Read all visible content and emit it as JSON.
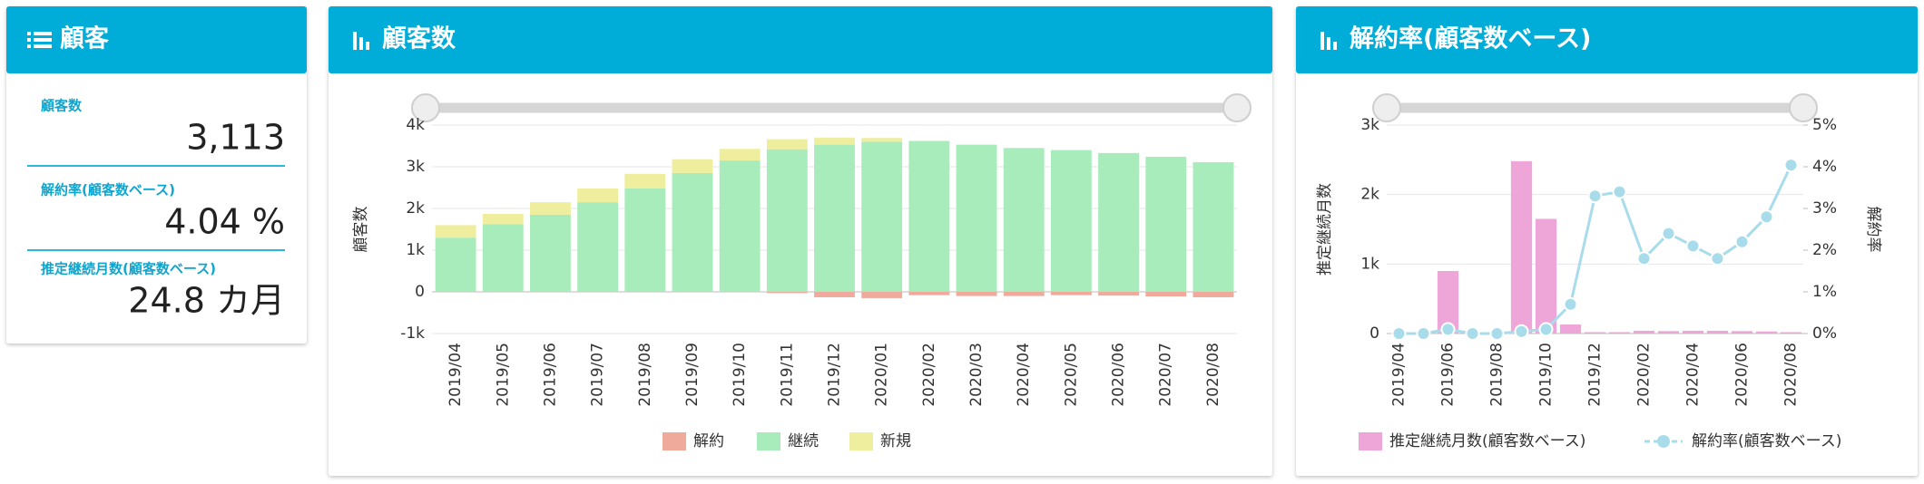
{
  "kpi": {
    "title": "顧客",
    "items": [
      {
        "label": "顧客数",
        "value": "3,113"
      },
      {
        "label": "解約率(顧客数ベース)",
        "value": "4.04 %"
      },
      {
        "label": "推定継続月数(顧客数ベース)",
        "value": "24.8 カ月"
      }
    ]
  },
  "chart_data": [
    {
      "type": "bar",
      "stacked": true,
      "title": "顧客数",
      "y_label": "顧客数",
      "categories": [
        "2019/04",
        "2019/05",
        "2019/06",
        "2019/07",
        "2019/08",
        "2019/09",
        "2019/10",
        "2019/11",
        "2019/12",
        "2020/01",
        "2020/02",
        "2020/03",
        "2020/04",
        "2020/05",
        "2020/06",
        "2020/07",
        "2020/08"
      ],
      "series": [
        {
          "name": "解約",
          "color": "#f0aa9c",
          "values": [
            0,
            0,
            0,
            0,
            0,
            0,
            0,
            -30,
            -130,
            -150,
            -80,
            -100,
            -100,
            -80,
            -90,
            -110,
            -130
          ]
        },
        {
          "name": "継続",
          "color": "#a8ecbc",
          "values": [
            1300,
            1620,
            1850,
            2150,
            2480,
            2850,
            3150,
            3420,
            3530,
            3600,
            3620,
            3530,
            3450,
            3400,
            3330,
            3240,
            3110
          ]
        },
        {
          "name": "新規",
          "color": "#eeee9e",
          "values": [
            300,
            250,
            300,
            330,
            350,
            330,
            280,
            240,
            170,
            90,
            0,
            0,
            0,
            0,
            0,
            0,
            0
          ]
        }
      ],
      "ylim": [
        -1000,
        4000
      ],
      "yticks": [
        {
          "value": -1000,
          "label": "-1k"
        },
        0,
        {
          "value": 1000,
          "label": "1k"
        },
        {
          "value": 2000,
          "label": "2k"
        },
        {
          "value": 3000,
          "label": "3k"
        },
        {
          "value": 4000,
          "label": "4k"
        }
      ],
      "grid": true,
      "legend": "bottom"
    },
    {
      "type": "bar",
      "title": "解約率(顧客数ベース)",
      "y_label": "推定継続月数",
      "y2_label": "解約率",
      "categories": [
        "2019/04",
        null,
        "2019/06",
        null,
        "2019/08",
        null,
        "2019/10",
        null,
        "2019/12",
        null,
        "2020/02",
        null,
        "2020/04",
        null,
        "2020/06",
        null,
        "2020/08"
      ],
      "series": [
        {
          "name": "推定継続月数(顧客数ベース)",
          "type": "bar",
          "color": "#eea6d8",
          "values": [
            0,
            0,
            900,
            0,
            0,
            2480,
            1650,
            130,
            20,
            20,
            40,
            35,
            40,
            40,
            35,
            30,
            20
          ]
        },
        {
          "name": "解約率(顧客数ベース)",
          "type": "line",
          "axis": "y2",
          "color": "#a8dcea",
          "values": [
            0,
            0,
            0.1,
            0,
            0,
            0.05,
            0.1,
            0.7,
            3.3,
            3.4,
            1.8,
            2.4,
            2.1,
            1.8,
            2.2,
            2.8,
            4.04
          ]
        }
      ],
      "ylim": [
        0,
        3000
      ],
      "yticks": [
        0,
        {
          "value": 1000,
          "label": "1k"
        },
        {
          "value": 2000,
          "label": "2k"
        },
        {
          "value": 3000,
          "label": "3k"
        }
      ],
      "y2lim": [
        0,
        5
      ],
      "y2ticks": [
        {
          "value": 0,
          "label": "0%"
        },
        {
          "value": 1,
          "label": "1%"
        },
        {
          "value": 2,
          "label": "2%"
        },
        {
          "value": 3,
          "label": "3%"
        },
        {
          "value": 4,
          "label": "4%"
        },
        {
          "value": 5,
          "label": "5%"
        }
      ],
      "grid": true,
      "legend": "bottom"
    }
  ]
}
